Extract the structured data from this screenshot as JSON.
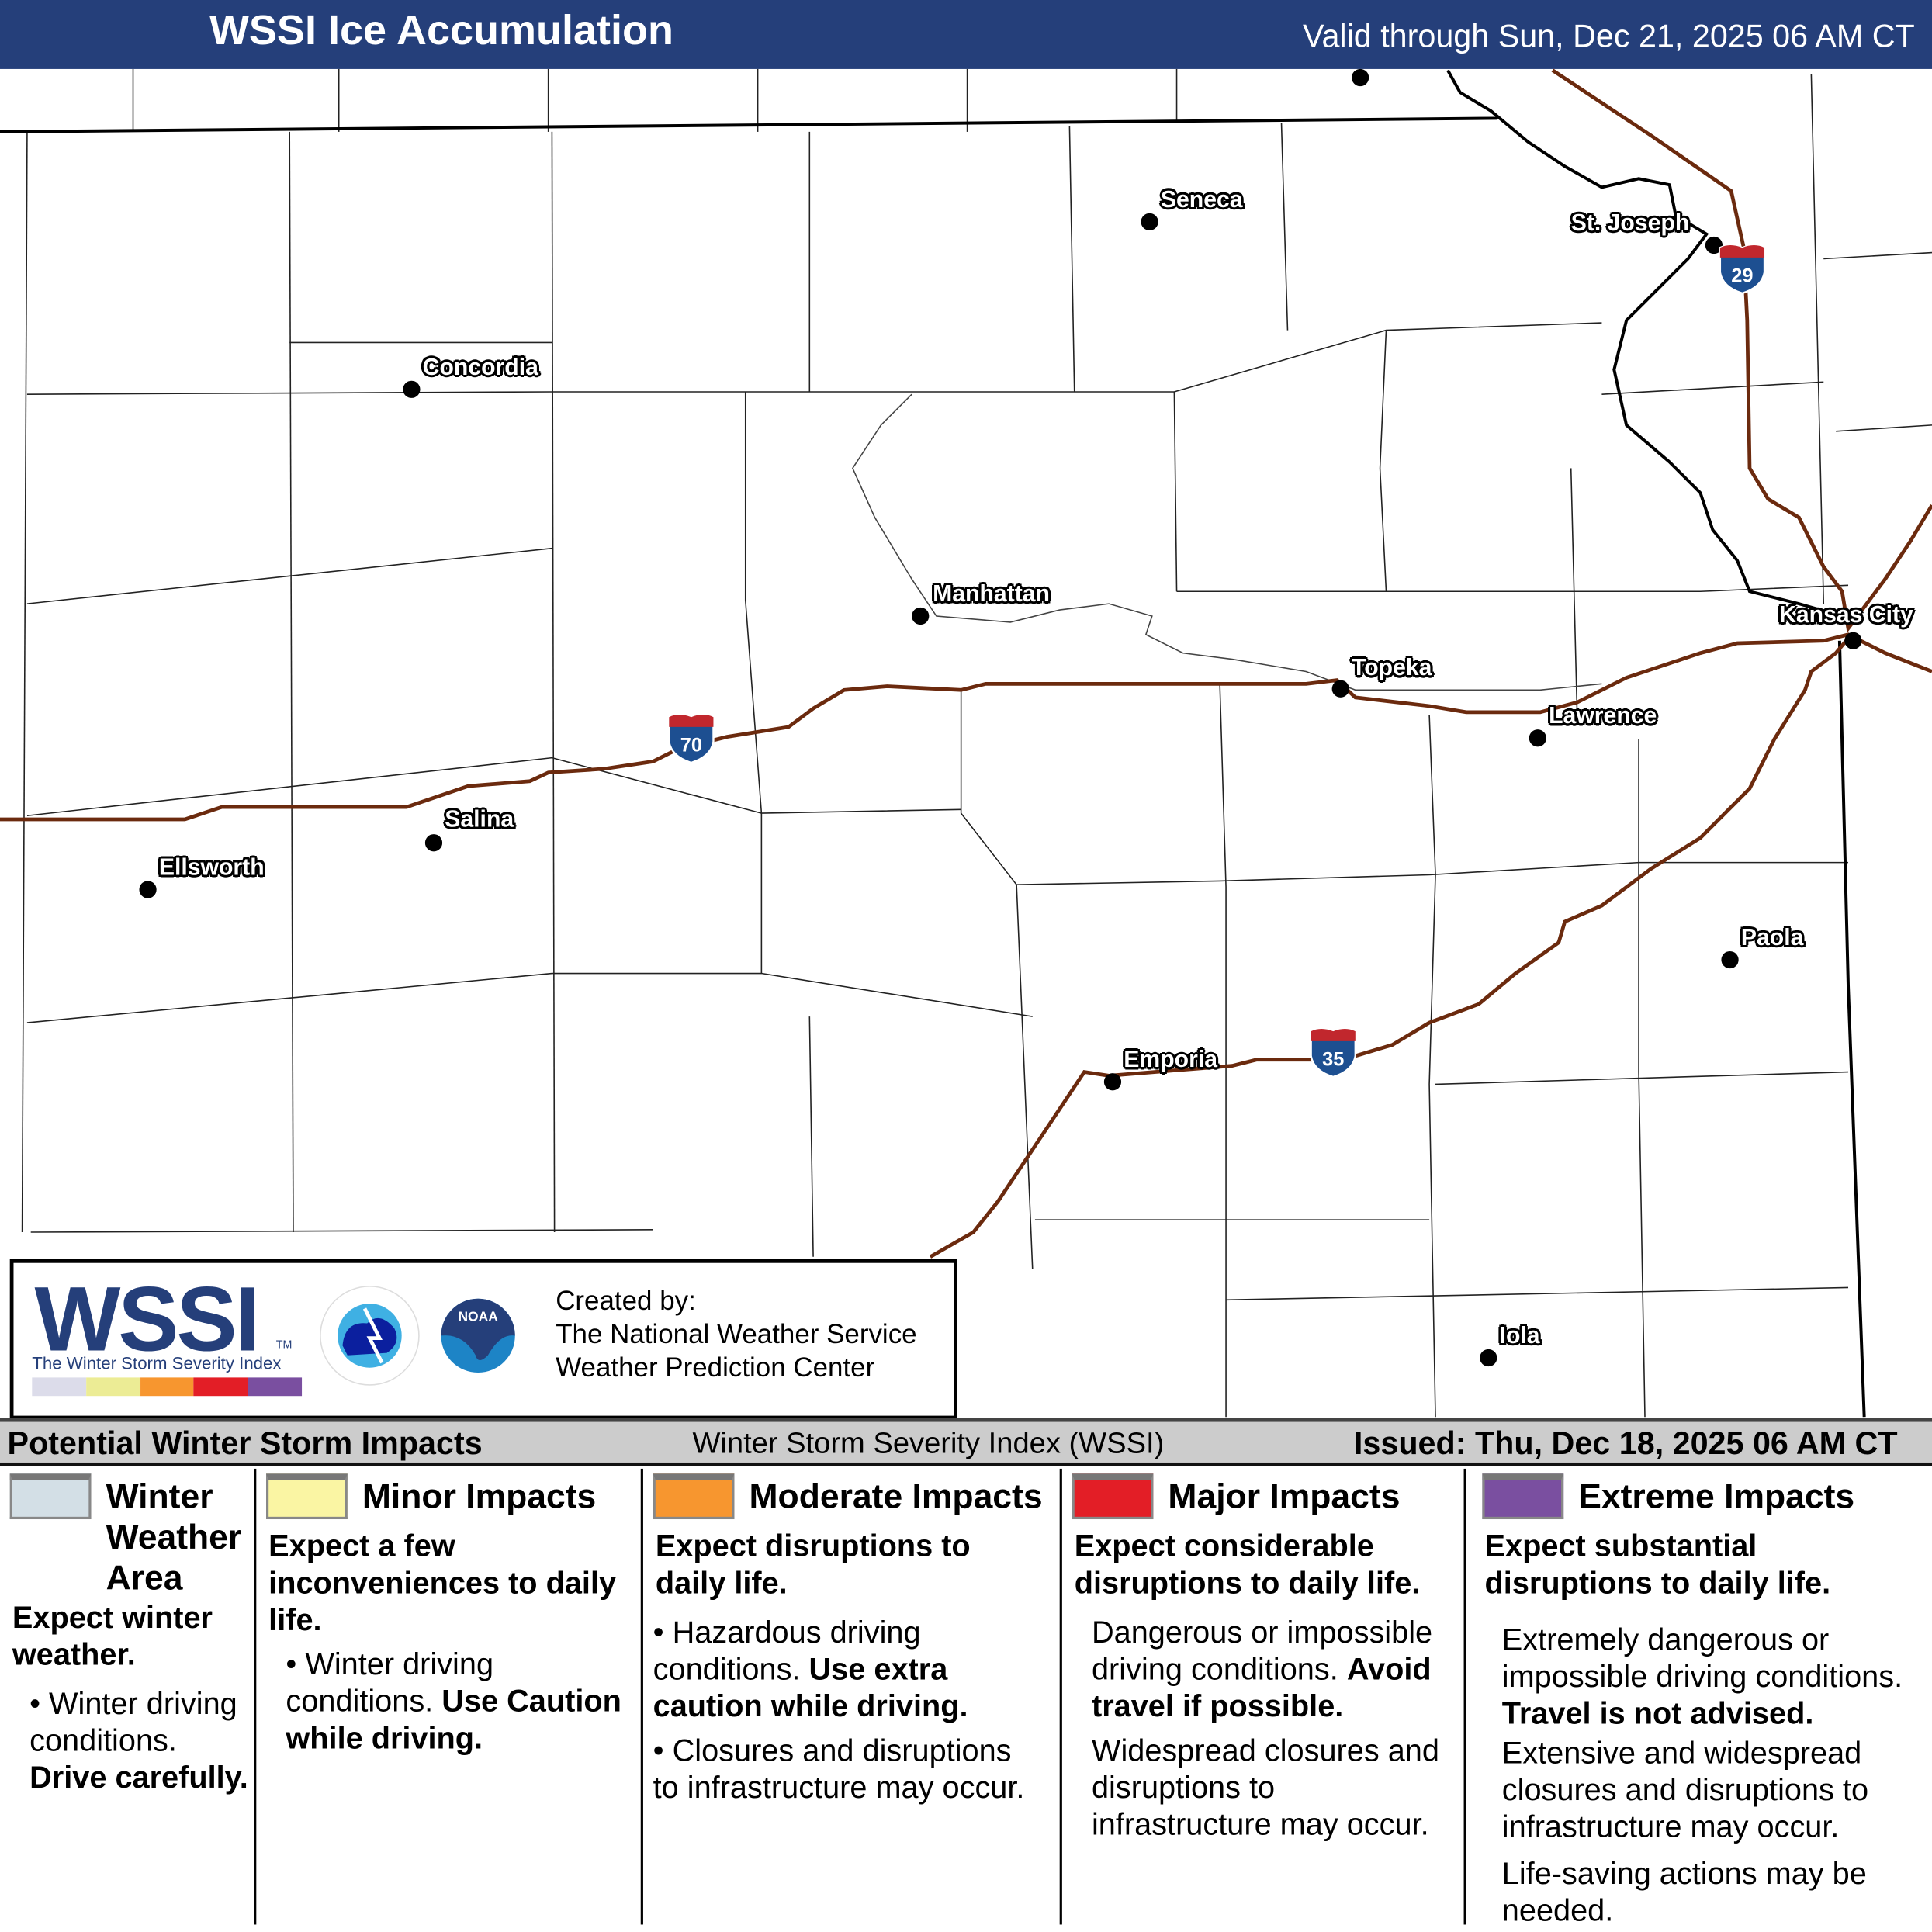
{
  "header": {
    "title": "WSSI Ice Accumulation",
    "valid": "Valid through Sun, Dec 21, 2025 06 AM CT"
  },
  "colors": {
    "header": "#253f7a",
    "interstate": "#6b2a0e",
    "none": "#d3dfe6",
    "minor": "#faf5a3",
    "moderate": "#f7962f",
    "major": "#e31e26",
    "extreme": "#7a4fa0"
  },
  "cities": [
    {
      "name": "Seneca"
    },
    {
      "name": "St. Joseph"
    },
    {
      "name": "Concordia"
    },
    {
      "name": "Manhattan"
    },
    {
      "name": "Topeka"
    },
    {
      "name": "Kansas City"
    },
    {
      "name": "Lawrence"
    },
    {
      "name": "Salina"
    },
    {
      "name": "Ellsworth"
    },
    {
      "name": "Paola"
    },
    {
      "name": "Emporia"
    },
    {
      "name": "Iola"
    }
  ],
  "interstates": [
    "70",
    "29",
    "35"
  ],
  "logo": {
    "wssi": "WSSI",
    "tm": "TM",
    "subtitle": "The Winter Storm Severity Index",
    "created_by": "Created by:",
    "org1": "The National Weather Service",
    "org2": "Weather Prediction Center",
    "nws_logo": "NATIONAL WEATHER SERVICE",
    "noaa_logo": "NOAA"
  },
  "bar": {
    "left": "Potential Winter Storm Impacts",
    "mid": "Winter Storm Severity Index (WSSI)",
    "right": "Issued: Thu, Dec 18, 2025 06 AM CT"
  },
  "legend": [
    {
      "title": "Winter Weather Area",
      "lead": "Expect winter weather.",
      "body": "Winter driving conditions.",
      "bold": "Drive carefully."
    },
    {
      "title": "Minor Impacts",
      "lead": "Expect a few inconveniences to daily life.",
      "body": "Winter driving conditions.",
      "bold": "Use Caution while driving."
    },
    {
      "title": "Moderate Impacts",
      "lead": "Expect disruptions to daily life.",
      "body": "Hazardous driving conditions.",
      "bold": "Use extra caution while driving.",
      "body2": "Closures and disruptions to infrastructure may occur."
    },
    {
      "title": "Major Impacts",
      "lead": "Expect considerable disruptions to daily life.",
      "body": "Dangerous or impossible driving conditions.",
      "bold": "Avoid travel if possible.",
      "body2": "Widespread closures and disruptions to infrastructure may occur."
    },
    {
      "title": "Extreme Impacts",
      "lead": "Expect substantial disruptions to daily life.",
      "body": "Extremely dangerous or impossible driving conditions.",
      "bold": "Travel is not advised.",
      "body2": "Extensive and widespread closures and disruptions to infrastructure may occur.",
      "body3": "Life-saving actions may be needed."
    }
  ]
}
